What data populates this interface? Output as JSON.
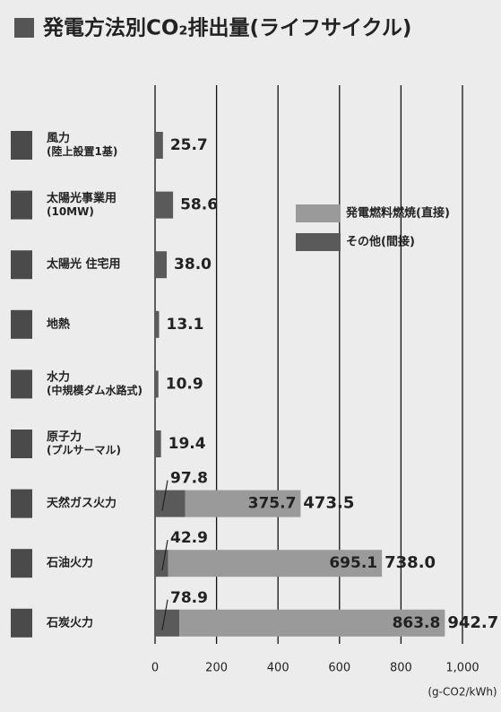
{
  "chart_data": {
    "type": "stacked-bar-horizontal",
    "title": "発電方法別CO₂排出量(ライフサイクル)",
    "categories": [
      "風力\n(陸上設置1基)",
      "太陽光事業用\n(10MW)",
      "太陽光 住宅用",
      "地熱",
      "水力\n(中規模ダム水路式)",
      "原子力\n(プルサーマル)",
      "天然ガス火力",
      "石油火力",
      "石炭火力"
    ],
    "series": [
      {
        "name": "発電燃料燃焼(直接)",
        "color": "#9a9a9a",
        "values": [
          null,
          null,
          null,
          null,
          null,
          null,
          375.7,
          695.1,
          863.8
        ],
        "value_labels": [
          null,
          null,
          null,
          null,
          null,
          null,
          "375.7",
          "695.1",
          "863.8"
        ]
      },
      {
        "name": "その他(間接)",
        "color": "#5a5a5a",
        "values": [
          25.7,
          58.6,
          38.0,
          13.1,
          10.9,
          19.4,
          97.8,
          42.9,
          78.9
        ],
        "value_labels": [
          "25.7",
          "58.6",
          "38.0",
          "13.1",
          "10.9",
          "19.4",
          "97.8",
          "42.9",
          "78.9"
        ]
      }
    ],
    "totals": [
      null,
      null,
      null,
      null,
      null,
      null,
      473.5,
      738.0,
      942.7
    ],
    "total_labels": [
      null,
      null,
      null,
      null,
      null,
      null,
      "473.5",
      "738.0",
      "942.7"
    ],
    "xlim": [
      0,
      1000
    ],
    "xticks": [
      0,
      200,
      400,
      600,
      800,
      {
        "value": 1000,
        "label": "1,000"
      }
    ],
    "x_label": "(g-CO2/kWh)",
    "grid": true
  }
}
